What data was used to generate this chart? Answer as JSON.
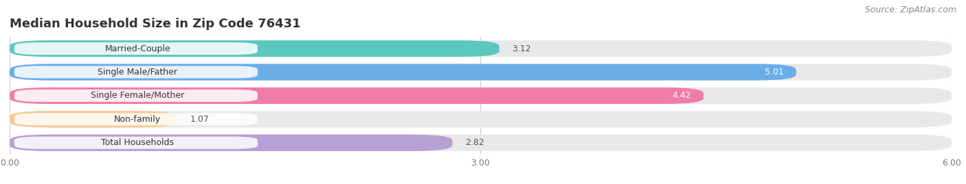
{
  "title": "Median Household Size in Zip Code 76431",
  "source": "Source: ZipAtlas.com",
  "categories": [
    "Married-Couple",
    "Single Male/Father",
    "Single Female/Mother",
    "Non-family",
    "Total Households"
  ],
  "values": [
    3.12,
    5.01,
    4.42,
    1.07,
    2.82
  ],
  "bar_colors": [
    "#5bc8c0",
    "#6aaee8",
    "#f07ca8",
    "#f5c990",
    "#b89fd4"
  ],
  "value_colors": [
    "#555555",
    "#ffffff",
    "#ffffff",
    "#555555",
    "#555555"
  ],
  "xlim": [
    0,
    6.0
  ],
  "xticks": [
    0.0,
    3.0,
    6.0
  ],
  "xtick_labels": [
    "0.00",
    "3.00",
    "6.00"
  ],
  "title_fontsize": 13,
  "label_fontsize": 9,
  "value_fontsize": 9,
  "source_fontsize": 9,
  "bg_bar_color": "#e8e8e8",
  "figure_bg": "#ffffff",
  "bar_height": 0.7,
  "bar_gap": 0.3
}
